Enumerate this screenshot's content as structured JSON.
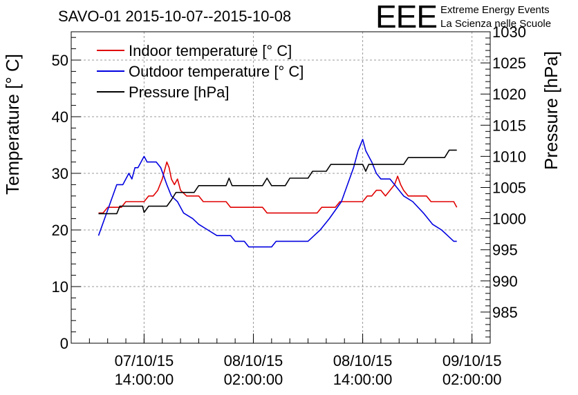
{
  "chart_data": {
    "type": "line",
    "title": "SAVO-01 2015-10-07--2015-10-08",
    "ylabel": "Temperature [° C]",
    "y2label": "Pressure [hPa]",
    "ylim": [
      0,
      55
    ],
    "y2lim": [
      980,
      1030
    ],
    "yticks": [
      0,
      10,
      20,
      30,
      40,
      50
    ],
    "y2ticks": [
      985,
      990,
      995,
      1000,
      1005,
      1010,
      1015,
      1020,
      1025,
      1030
    ],
    "xlim": [
      "2015-10-07 06:00",
      "2015-10-09 04:00"
    ],
    "xticks": [
      {
        "at": "2015-10-07 14:00",
        "date": "07/10/15",
        "time": "14:00:00"
      },
      {
        "at": "2015-10-08 02:00",
        "date": "08/10/15",
        "time": "02:00:00"
      },
      {
        "at": "2015-10-08 14:00",
        "date": "08/10/15",
        "time": "14:00:00"
      },
      {
        "at": "2015-10-09 02:00",
        "date": "09/10/15",
        "time": "02:00:00"
      }
    ],
    "grid": true,
    "legend_position": "top-left",
    "series": [
      {
        "name": "Indoor temperature [° C]",
        "axis": "left",
        "color": "#e00000",
        "points": [
          [
            "2015-10-07 09:00",
            23
          ],
          [
            "2015-10-07 09:30",
            23
          ],
          [
            "2015-10-07 10:00",
            24
          ],
          [
            "2015-10-07 11:30",
            24
          ],
          [
            "2015-10-07 12:00",
            25
          ],
          [
            "2015-10-07 14:00",
            25
          ],
          [
            "2015-10-07 14:30",
            26
          ],
          [
            "2015-10-07 15:00",
            26
          ],
          [
            "2015-10-07 15:30",
            27
          ],
          [
            "2015-10-07 16:00",
            29
          ],
          [
            "2015-10-07 16:30",
            32
          ],
          [
            "2015-10-07 16:45",
            31
          ],
          [
            "2015-10-07 17:00",
            29
          ],
          [
            "2015-10-07 17:20",
            28
          ],
          [
            "2015-10-07 17:40",
            29
          ],
          [
            "2015-10-07 18:00",
            27
          ],
          [
            "2015-10-07 18:40",
            26
          ],
          [
            "2015-10-07 20:00",
            26
          ],
          [
            "2015-10-07 20:30",
            25
          ],
          [
            "2015-10-07 23:00",
            25
          ],
          [
            "2015-10-07 23:30",
            24
          ],
          [
            "2015-10-08 03:00",
            24
          ],
          [
            "2015-10-08 03:30",
            23
          ],
          [
            "2015-10-08 09:00",
            23
          ],
          [
            "2015-10-08 09:30",
            24
          ],
          [
            "2015-10-08 11:00",
            24
          ],
          [
            "2015-10-08 11:30",
            25
          ],
          [
            "2015-10-08 14:00",
            25
          ],
          [
            "2015-10-08 14:30",
            26
          ],
          [
            "2015-10-08 15:00",
            26
          ],
          [
            "2015-10-08 15:30",
            27
          ],
          [
            "2015-10-08 16:00",
            27
          ],
          [
            "2015-10-08 16:30",
            26
          ],
          [
            "2015-10-08 17:00",
            27
          ],
          [
            "2015-10-08 17:30",
            28
          ],
          [
            "2015-10-08 17:50",
            29.5
          ],
          [
            "2015-10-08 18:10",
            28
          ],
          [
            "2015-10-08 18:30",
            27
          ],
          [
            "2015-10-08 19:00",
            26
          ],
          [
            "2015-10-08 21:00",
            26
          ],
          [
            "2015-10-08 21:30",
            25
          ],
          [
            "2015-10-08 23:30",
            25
          ],
          [
            "2015-10-09 00:00",
            25
          ],
          [
            "2015-10-09 00:20",
            24
          ]
        ]
      },
      {
        "name": "Outdoor temperature [° C]",
        "axis": "left",
        "color": "#0000e0",
        "points": [
          [
            "2015-10-07 09:00",
            19
          ],
          [
            "2015-10-07 09:40",
            22
          ],
          [
            "2015-10-07 10:20",
            25
          ],
          [
            "2015-10-07 11:00",
            28
          ],
          [
            "2015-10-07 11:40",
            28
          ],
          [
            "2015-10-07 12:00",
            29
          ],
          [
            "2015-10-07 12:20",
            30
          ],
          [
            "2015-10-07 12:40",
            29
          ],
          [
            "2015-10-07 13:00",
            31
          ],
          [
            "2015-10-07 13:20",
            31
          ],
          [
            "2015-10-07 13:40",
            32
          ],
          [
            "2015-10-07 14:00",
            33
          ],
          [
            "2015-10-07 14:20",
            32
          ],
          [
            "2015-10-07 15:20",
            32
          ],
          [
            "2015-10-07 15:50",
            31
          ],
          [
            "2015-10-07 16:30",
            28
          ],
          [
            "2015-10-07 17:00",
            26
          ],
          [
            "2015-10-07 17:40",
            25
          ],
          [
            "2015-10-07 18:20",
            23
          ],
          [
            "2015-10-07 19:20",
            22
          ],
          [
            "2015-10-07 20:00",
            21
          ],
          [
            "2015-10-07 21:00",
            20
          ],
          [
            "2015-10-07 22:00",
            19
          ],
          [
            "2015-10-07 23:30",
            19
          ],
          [
            "2015-10-08 00:00",
            18
          ],
          [
            "2015-10-08 01:00",
            18
          ],
          [
            "2015-10-08 01:30",
            17
          ],
          [
            "2015-10-08 04:00",
            17
          ],
          [
            "2015-10-08 04:30",
            18
          ],
          [
            "2015-10-08 08:00",
            18
          ],
          [
            "2015-10-08 08:40",
            19
          ],
          [
            "2015-10-08 09:20",
            20
          ],
          [
            "2015-10-08 10:20",
            22
          ],
          [
            "2015-10-08 11:40",
            25
          ],
          [
            "2015-10-08 12:20",
            28
          ],
          [
            "2015-10-08 13:00",
            31
          ],
          [
            "2015-10-08 13:30",
            34
          ],
          [
            "2015-10-08 14:00",
            36
          ],
          [
            "2015-10-08 14:20",
            34
          ],
          [
            "2015-10-08 14:40",
            33
          ],
          [
            "2015-10-08 15:00",
            32
          ],
          [
            "2015-10-08 15:30",
            30
          ],
          [
            "2015-10-08 16:00",
            29
          ],
          [
            "2015-10-08 17:00",
            29
          ],
          [
            "2015-10-08 17:30",
            28
          ],
          [
            "2015-10-08 18:00",
            27
          ],
          [
            "2015-10-08 18:30",
            26
          ],
          [
            "2015-10-08 19:30",
            25
          ],
          [
            "2015-10-08 20:40",
            23
          ],
          [
            "2015-10-08 21:40",
            21
          ],
          [
            "2015-10-08 22:40",
            20
          ],
          [
            "2015-10-08 23:20",
            19
          ],
          [
            "2015-10-09 00:00",
            18
          ],
          [
            "2015-10-09 00:20",
            18
          ]
        ]
      },
      {
        "name": "Pressure [hPa]",
        "axis": "right",
        "color": "#000000",
        "points": [
          [
            "2015-10-07 09:00",
            1000.8
          ],
          [
            "2015-10-07 11:00",
            1000.8
          ],
          [
            "2015-10-07 11:20",
            1002.0
          ],
          [
            "2015-10-07 13:50",
            1002.0
          ],
          [
            "2015-10-07 14:00",
            1001.0
          ],
          [
            "2015-10-07 14:30",
            1002.0
          ],
          [
            "2015-10-07 16:30",
            1002.0
          ],
          [
            "2015-10-07 17:00",
            1003.0
          ],
          [
            "2015-10-07 17:30",
            1004.2
          ],
          [
            "2015-10-07 19:30",
            1004.2
          ],
          [
            "2015-10-07 20:00",
            1005.3
          ],
          [
            "2015-10-07 23:00",
            1005.3
          ],
          [
            "2015-10-07 23:20",
            1006.5
          ],
          [
            "2015-10-07 23:40",
            1005.3
          ],
          [
            "2015-10-08 03:00",
            1005.3
          ],
          [
            "2015-10-08 03:30",
            1006.5
          ],
          [
            "2015-10-08 04:00",
            1005.3
          ],
          [
            "2015-10-08 05:30",
            1005.3
          ],
          [
            "2015-10-08 06:00",
            1006.5
          ],
          [
            "2015-10-08 08:00",
            1006.5
          ],
          [
            "2015-10-08 08:30",
            1007.6
          ],
          [
            "2015-10-08 10:00",
            1007.6
          ],
          [
            "2015-10-08 10:30",
            1008.7
          ],
          [
            "2015-10-08 14:00",
            1008.7
          ],
          [
            "2015-10-08 14:20",
            1007.6
          ],
          [
            "2015-10-08 14:40",
            1008.7
          ],
          [
            "2015-10-08 18:30",
            1008.7
          ],
          [
            "2015-10-08 19:00",
            1009.8
          ],
          [
            "2015-10-08 23:00",
            1009.8
          ],
          [
            "2015-10-08 23:30",
            1011.0
          ],
          [
            "2015-10-09 00:20",
            1011.0
          ]
        ]
      }
    ]
  },
  "logo": {
    "letters": "EEE",
    "line1": "Extreme Energy Events",
    "line2": "La Scienza nelle Scuole",
    "color": "#1a1aff"
  }
}
